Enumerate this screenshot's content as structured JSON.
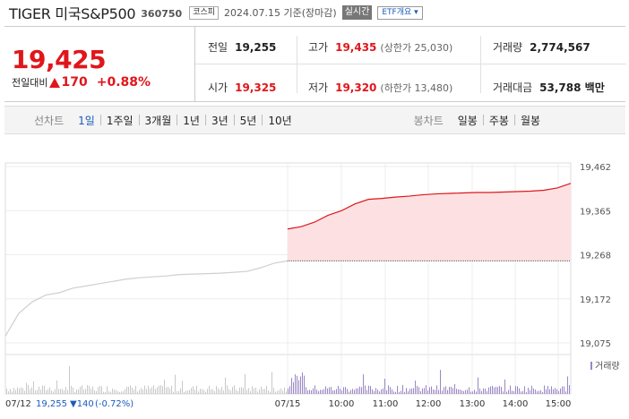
{
  "header": {
    "title": "TIGER 미국S&P500",
    "code": "360750",
    "market": "코스피",
    "date": "2024.07.15 기준(장마감)",
    "live_button": "실시간",
    "etf_button": "ETF개요 ▾"
  },
  "price": {
    "current": "19,425",
    "change_label": "전일대비",
    "change": "170",
    "change_pct": "+0.88%",
    "direction": "up"
  },
  "stats": {
    "prev_close": {
      "label": "전일",
      "value": "19,255"
    },
    "high": {
      "label": "고가",
      "value": "19,435",
      "sub": "(상한가 25,030)"
    },
    "volume": {
      "label": "거래량",
      "value": "2,774,567"
    },
    "open": {
      "label": "시가",
      "value": "19,325"
    },
    "low": {
      "label": "저가",
      "value": "19,320",
      "sub": "(하한가 13,480)"
    },
    "amount": {
      "label": "거래대금",
      "value": "53,788 백만"
    }
  },
  "line_tabs": {
    "label": "선차트",
    "items": [
      "1일",
      "1주일",
      "3개월",
      "1년",
      "3년",
      "5년",
      "10년"
    ],
    "active": "1일"
  },
  "candle_tabs": {
    "label": "봉차트",
    "items": [
      "일봉",
      "주봉",
      "월봉"
    ]
  },
  "chart_data": {
    "type": "line",
    "y_ticks": [
      "19,462",
      "19,365",
      "19,268",
      "19,172",
      "19,075"
    ],
    "ylim": [
      19075,
      19462
    ],
    "prev_close": 19255,
    "x_ticks": [
      "07/15",
      "10:00",
      "11:00",
      "12:00",
      "13:00",
      "14:00",
      "15:00"
    ],
    "volume_label": "거래량",
    "prev_day": {
      "date": "07/12",
      "close": "19,255",
      "change": "▼140",
      "change_pct": "(-0.72%)",
      "values": [
        19090,
        19140,
        19165,
        19180,
        19185,
        19195,
        19200,
        19205,
        19210,
        19215,
        19218,
        19220,
        19222,
        19225,
        19226,
        19227,
        19228,
        19230,
        19232,
        19240,
        19250,
        19255
      ]
    },
    "today": {
      "values": [
        19325,
        19330,
        19340,
        19355,
        19365,
        19380,
        19390,
        19392,
        19395,
        19397,
        19400,
        19402,
        19403,
        19404,
        19405,
        19405,
        19406,
        19407,
        19408,
        19410,
        19415,
        19425
      ]
    },
    "colors": {
      "up": "#e0161b",
      "up_fill": "#fde1e2",
      "prev": "#cfcfcf",
      "volume_prev": "#c8c8c8",
      "volume_today": "#9a86c4"
    }
  }
}
